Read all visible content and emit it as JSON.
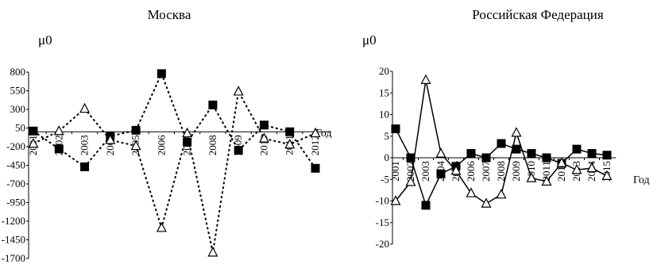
{
  "chart_data": [
    {
      "type": "line",
      "title": "Москва",
      "ylabel": "μ0",
      "xlabel": "Год",
      "ylim": [
        -1700,
        800
      ],
      "yticks": [
        800,
        550,
        300,
        50,
        -200,
        -450,
        -700,
        -950,
        -1200,
        -1450,
        -1700
      ],
      "categories": [
        "2001",
        "2002",
        "2003",
        "2004",
        "2005",
        "2006",
        "2007",
        "2008",
        "2009",
        "2010",
        "2011",
        "2012"
      ],
      "grid": false,
      "series": [
        {
          "marker": "square",
          "line": "dashed",
          "values": [
            10,
            -230,
            -470,
            -60,
            20,
            780,
            -140,
            360,
            -250,
            90,
            0,
            -490
          ]
        },
        {
          "marker": "triangle",
          "line": "dashed",
          "values": [
            -160,
            10,
            310,
            -110,
            -190,
            -1290,
            -20,
            -1620,
            540,
            -90,
            -170,
            -20
          ]
        }
      ]
    },
    {
      "type": "line",
      "title": "Российская Федерация",
      "ylabel": "μ0",
      "xlabel": "Год",
      "ylim": [
        -20,
        20
      ],
      "yticks": [
        20,
        15,
        10,
        5,
        0,
        -5,
        -10,
        -15,
        -20
      ],
      "categories": [
        "2001",
        "2002",
        "2003",
        "2004",
        "2005",
        "2006",
        "2007",
        "2008",
        "2009",
        "2010",
        "2011",
        "2012",
        "2013",
        "2014",
        "2015"
      ],
      "grid": false,
      "series": [
        {
          "marker": "square",
          "line": "solid",
          "values": [
            6.7,
            0,
            -11,
            -3.7,
            -2,
            1,
            0,
            3.3,
            2,
            1,
            0,
            -1.3,
            2,
            1,
            0.6
          ]
        },
        {
          "marker": "triangle",
          "line": "solid",
          "values": [
            -10,
            -5.6,
            18,
            1,
            -3,
            -8.2,
            -10.6,
            -8.5,
            5.8,
            -4.7,
            -5.5,
            -1.2,
            -2.8,
            -2.4,
            -4.2
          ]
        }
      ]
    }
  ]
}
